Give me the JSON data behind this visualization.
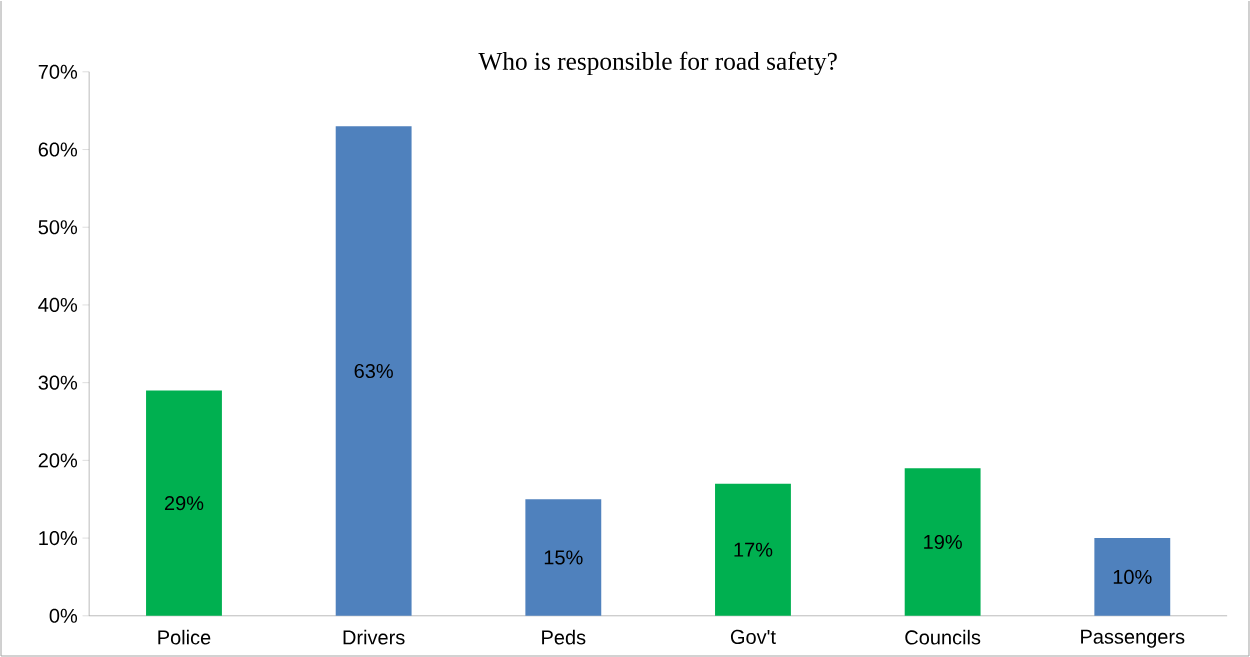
{
  "chart_data": {
    "type": "bar",
    "title": "Who is responsible for road safety?",
    "categories": [
      "Police",
      "Drivers",
      "Peds",
      "Gov't",
      "Councils",
      "Passengers"
    ],
    "values": [
      29,
      63,
      15,
      17,
      19,
      10
    ],
    "colors": [
      "#00b050",
      "#4f81bd",
      "#4f81bd",
      "#00b050",
      "#00b050",
      "#4f81bd"
    ],
    "value_labels": [
      "29%",
      "63%",
      "15%",
      "17%",
      "19%",
      "10%"
    ],
    "ylim": [
      0,
      70
    ],
    "yticks": [
      {
        "value": 0,
        "label": "0%"
      },
      {
        "value": 10,
        "label": "10%"
      },
      {
        "value": 20,
        "label": "20%"
      },
      {
        "value": 30,
        "label": "30%"
      },
      {
        "value": 40,
        "label": "40%"
      },
      {
        "value": 50,
        "label": "50%"
      },
      {
        "value": 60,
        "label": "60%"
      },
      {
        "value": 70,
        "label": "70%"
      }
    ]
  }
}
